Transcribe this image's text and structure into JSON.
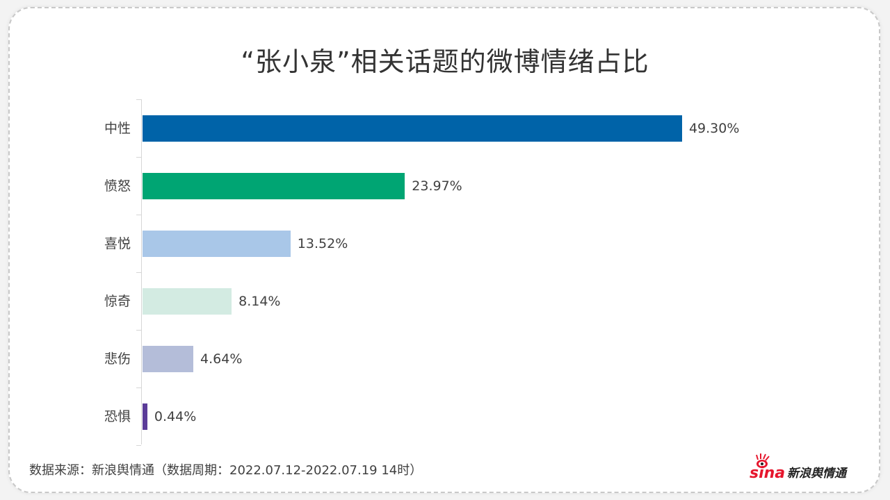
{
  "header": {
    "title": "“张小泉”相关话题的微博情绪占比"
  },
  "chart_data": {
    "type": "bar",
    "orientation": "horizontal",
    "title": "“张小泉”相关话题的微博情绪占比",
    "xlabel": "",
    "ylabel": "",
    "categories": [
      "中性",
      "愤怒",
      "喜悦",
      "惊奇",
      "悲伤",
      "恐惧"
    ],
    "values": [
      49.3,
      23.97,
      13.52,
      8.14,
      4.64,
      0.44
    ],
    "value_labels": [
      "49.30%",
      "23.97%",
      "13.52%",
      "8.14%",
      "4.64%",
      "0.44%"
    ],
    "colors": [
      "#0063a8",
      "#00a573",
      "#a9c7e8",
      "#d3ebe2",
      "#b4bdd9",
      "#5b3c98"
    ],
    "unit": "%",
    "grid": false,
    "legend": "none"
  },
  "footer": {
    "source": "数据来源：新浪舆情通（数据周期：2022.07.12-2022.07.19 14时）"
  },
  "logo": {
    "brand": "sina",
    "text": "新浪舆情通",
    "icon": "sina-eye-icon"
  }
}
